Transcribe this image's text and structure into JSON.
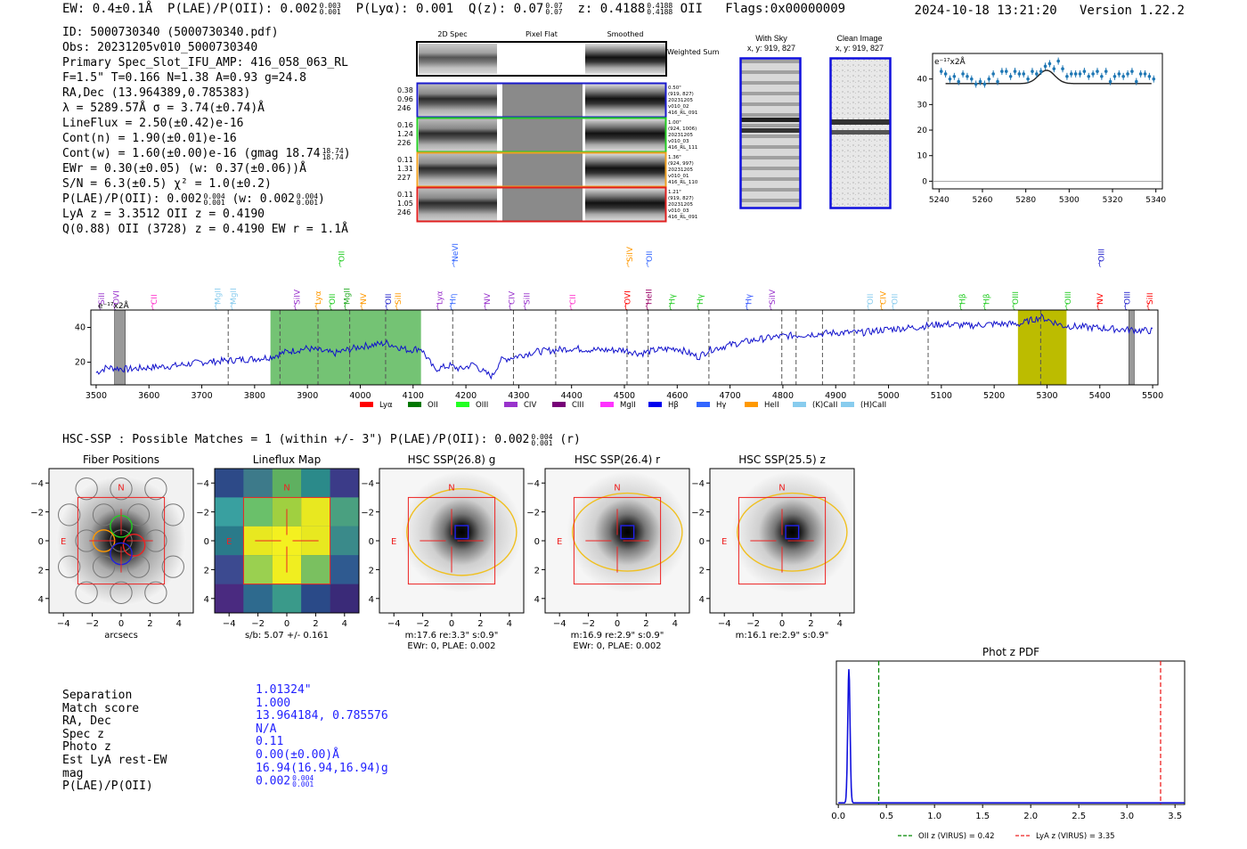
{
  "header": {
    "ew": "EW: 0.4±0.1Å",
    "plae_label": "P(LAE)/P(OII):",
    "plae_value": "0.002",
    "plae_hi": "0.003",
    "plae_lo": "0.001",
    "plya": "P(Lyα): 0.001",
    "qz_label": "Q(z): 0.07",
    "qz_hi": "0.07",
    "qz_lo": "0.07",
    "z_label": "z: 0.4188",
    "z_hi": "0.4188",
    "z_lo": "0.4188",
    "z_line": "OII",
    "flags": "Flags:0x00000009",
    "timestamp": "2024-10-18 13:21:20",
    "version": "Version 1.22.2"
  },
  "info": {
    "id": "ID: 5000730340 (5000730340.pdf)",
    "obs": "Obs: 20231205v010_5000730340",
    "primary": "Primary Spec_Slot_IFU_AMP: 416_058_063_RL",
    "fparams": "F=1.5\"  T=0.166  N=1.38  A=0.93  g=24.8",
    "radec": "RA,Dec (13.964389,0.785383)",
    "lambda": "λ = 5289.57Å  σ = 3.74(±0.74)Å",
    "lineflux": "LineFlux = 2.50(±0.42)e-16",
    "contn": "Cont(n) = 1.90(±0.01)e-16",
    "contw": "Cont(w) = 1.60(±0.00)e-16 (gmag 18.74",
    "contw_hi": "18.74",
    "contw_lo": "18.74",
    "contw_end": ")",
    "ewr": "EWr = 0.30(±0.05) (w: 0.37(±0.06))Å",
    "sn": "S/N = 6.3(±0.5)  χ² = 1.0(±0.2)",
    "plae": "P(LAE)/P(OII): 0.002",
    "plae_hi": "0.004",
    "plae_lo": "0.001",
    "plae_w": "(w: 0.002",
    "plae_w_hi": "0.004",
    "plae_w_lo": "0.001",
    "plae_w_end": ")",
    "lya": "LyA z = 3.3512   OII z = 0.4190",
    "q": "Q(0.88) OII (3728) z = 0.4190   EW r = 1.1Å"
  },
  "cutouts": {
    "col_2d": "2D Spec",
    "col_flat": "Pixel Flat",
    "col_smooth": "Smoothed",
    "weighted_sum": "Weighted Sum",
    "rows": [
      {
        "left": [
          "0.38",
          "0.96",
          "246"
        ],
        "right": [
          "0.50\"",
          "(919, 827)",
          "20231205",
          "v010_02",
          "416_RL_091"
        ],
        "color": "#1a1acc"
      },
      {
        "left": [
          "0.16",
          "1.24",
          "226"
        ],
        "right": [
          "1.00\"",
          "(924, 1006)",
          "20231205",
          "v010_03",
          "416_RL_111"
        ],
        "color": "#22cc22"
      },
      {
        "left": [
          "0.11",
          "1.31",
          "227"
        ],
        "right": [
          "1.36\"",
          "(924, 997)",
          "20231205",
          "v010_01",
          "416_RL_110"
        ],
        "color": "#f0a020"
      },
      {
        "left": [
          "0.11",
          "1.05",
          "246"
        ],
        "right": [
          "1.21\"",
          "(919, 827)",
          "20231205",
          "v010_03",
          "416_RL_091"
        ],
        "color": "#e02020"
      }
    ],
    "with_sky_title": "With Sky",
    "with_sky_xy": "x, y: 919, 827",
    "clean_title": "Clean Image",
    "clean_xy": "x, y: 919, 827"
  },
  "zoom_chart": {
    "type": "scatter",
    "ylabel": "e⁻¹⁷x2Å",
    "xlim": [
      5237,
      5343
    ],
    "ylim": [
      -3,
      50
    ],
    "xticks": [
      "5240",
      "5260",
      "5280",
      "5300",
      "5320",
      "5340"
    ],
    "yticks": [
      "0",
      "10",
      "20",
      "30",
      "40"
    ],
    "x": [
      5241,
      5243,
      5245,
      5247,
      5249,
      5251,
      5253,
      5255,
      5257,
      5259,
      5261,
      5263,
      5265,
      5267,
      5269,
      5271,
      5273,
      5275,
      5277,
      5279,
      5281,
      5283,
      5285,
      5287,
      5289,
      5291,
      5293,
      5295,
      5297,
      5299,
      5301,
      5303,
      5305,
      5307,
      5309,
      5311,
      5313,
      5315,
      5317,
      5319,
      5321,
      5323,
      5325,
      5327,
      5329,
      5331,
      5333,
      5335,
      5337,
      5339
    ],
    "y": [
      43,
      42,
      40,
      41,
      39,
      42,
      41,
      40,
      38,
      39,
      38,
      40,
      42,
      39,
      43,
      43,
      41,
      43,
      42,
      42,
      40,
      43,
      42,
      43,
      45,
      46,
      44,
      47,
      44,
      41,
      42,
      42,
      42,
      43,
      41,
      42,
      43,
      41,
      43,
      39,
      41,
      42,
      41,
      42,
      43,
      39,
      42,
      42,
      41,
      40
    ],
    "fit": {
      "center": 5289.6,
      "sigma": 3.74,
      "base": 38.2,
      "amp": 5.2,
      "x_start": 5243,
      "x_end": 5338
    }
  },
  "spectrum": {
    "type": "line",
    "ylabel": "e⁻¹⁷x2Å",
    "xlim": [
      3490,
      5510
    ],
    "ylim": [
      7,
      50
    ],
    "xticks": [
      "3500",
      "3600",
      "3700",
      "3800",
      "3900",
      "4000",
      "4100",
      "4200",
      "4300",
      "4400",
      "4500",
      "4600",
      "4700",
      "4800",
      "4900",
      "5000",
      "5100",
      "5200",
      "5300",
      "5400",
      "5500"
    ],
    "yticks": [
      "20",
      "40"
    ],
    "green_band": [
      3830,
      4115
    ],
    "yellow_band": [
      5245,
      5337
    ],
    "gray_bands": [
      [
        3535,
        3555
      ],
      [
        5455,
        5465
      ]
    ],
    "dashed": [
      3750,
      3848,
      3920,
      3980,
      4048,
      4175,
      4290,
      4370,
      4505,
      4545,
      4660,
      4798,
      4825,
      4875,
      4935,
      5075,
      5288
    ],
    "lines": [
      {
        "name": "SiII",
        "x": 3510,
        "color": "#9933cc",
        "row": 0
      },
      {
        "name": "OVI",
        "x": 3538,
        "color": "#9933cc",
        "row": 0
      },
      {
        "name": "CII",
        "x": 3610,
        "color": "#ff33cc",
        "row": 0
      },
      {
        "name": "MgII",
        "x": 3730,
        "color": "#88ccee",
        "row": 0
      },
      {
        "name": "MgII",
        "x": 3760,
        "color": "#88ccee",
        "row": 0
      },
      {
        "name": "SiIV",
        "x": 3880,
        "color": "#9933cc",
        "row": 0
      },
      {
        "name": "Lyα",
        "x": 3920,
        "color": "#ff9900",
        "row": 0
      },
      {
        "name": "OII",
        "x": 3947,
        "color": "#22cc22",
        "row": 0
      },
      {
        "name": "MgII",
        "x": 3975,
        "color": "#22aa22",
        "row": 0
      },
      {
        "name": "NV",
        "x": 4006,
        "color": "#ff9900",
        "row": 0
      },
      {
        "name": "OII",
        "x": 4053,
        "color": "#2222cc",
        "row": 0
      },
      {
        "name": "SiII",
        "x": 4072,
        "color": "#ff9900",
        "row": 0
      },
      {
        "name": "Lyα",
        "x": 4150,
        "color": "#9933cc",
        "row": 0
      },
      {
        "name": "Hη",
        "x": 4175,
        "color": "#3366ff",
        "row": 0
      },
      {
        "name": "NV",
        "x": 4240,
        "color": "#9933cc",
        "row": 0
      },
      {
        "name": "CIV",
        "x": 4287,
        "color": "#9933cc",
        "row": 0
      },
      {
        "name": "SiII",
        "x": 4315,
        "color": "#9933cc",
        "row": 0
      },
      {
        "name": "CII",
        "x": 4402,
        "color": "#ff33cc",
        "row": 0
      },
      {
        "name": "OVI",
        "x": 4506,
        "color": "#ff0000",
        "row": 0
      },
      {
        "name": "HeII",
        "x": 4546,
        "color": "#990066",
        "row": 0
      },
      {
        "name": "Hγ",
        "x": 4590,
        "color": "#22cc22",
        "row": 0
      },
      {
        "name": "Hγ",
        "x": 4643,
        "color": "#22cc22",
        "row": 0
      },
      {
        "name": "Hγ",
        "x": 4735,
        "color": "#3355ff",
        "row": 0
      },
      {
        "name": "SiIV",
        "x": 4780,
        "color": "#9933cc",
        "row": 0
      },
      {
        "name": "OII",
        "x": 4965,
        "color": "#88ccee",
        "row": 0
      },
      {
        "name": "CIV",
        "x": 4990,
        "color": "#ff9900",
        "row": 0
      },
      {
        "name": "OII",
        "x": 5012,
        "color": "#88ccee",
        "row": 0
      },
      {
        "name": "Hβ",
        "x": 5140,
        "color": "#22cc22",
        "row": 0
      },
      {
        "name": "Hβ",
        "x": 5185,
        "color": "#22cc22",
        "row": 0
      },
      {
        "name": "OIII",
        "x": 5240,
        "color": "#22cc22",
        "row": 0
      },
      {
        "name": "OIII",
        "x": 5340,
        "color": "#22cc22",
        "row": 0
      },
      {
        "name": "NV",
        "x": 5400,
        "color": "#ff0000",
        "row": 0
      },
      {
        "name": "OIII",
        "x": 5452,
        "color": "#2222cc",
        "row": 0
      },
      {
        "name": "SiII",
        "x": 5495,
        "color": "#ff0000",
        "row": 0
      },
      {
        "name": "OII",
        "x": 3965,
        "color": "#22cc22",
        "row": 1
      },
      {
        "name": "NeVI",
        "x": 4180,
        "color": "#3366ff",
        "row": 1
      },
      {
        "name": "SiIV",
        "x": 4510,
        "color": "#ff9900",
        "row": 1
      },
      {
        "name": "OII",
        "x": 4547,
        "color": "#3366ff",
        "row": 1
      },
      {
        "name": "OIII",
        "x": 5403,
        "color": "#2222cc",
        "row": 1
      }
    ],
    "legend": [
      {
        "label": "Lyα",
        "color": "#ff0000"
      },
      {
        "label": "OII",
        "color": "#007700"
      },
      {
        "label": "OIII",
        "color": "#22ff22"
      },
      {
        "label": "CIV",
        "color": "#9933cc"
      },
      {
        "label": "CIII",
        "color": "#770077"
      },
      {
        "label": "MgII",
        "color": "#ff33ff"
      },
      {
        "label": "Hβ",
        "color": "#0000ee"
      },
      {
        "label": "Hγ",
        "color": "#3366ff"
      },
      {
        "label": "HeII",
        "color": "#ff9900"
      },
      {
        "label": "(K)CaII",
        "color": "#88ccee"
      },
      {
        "label": "(H)CaII",
        "color": "#88ccee"
      }
    ],
    "anchors": [
      [
        3500,
        14
      ],
      [
        3520,
        17
      ],
      [
        3560,
        16
      ],
      [
        3600,
        17
      ],
      [
        3650,
        18
      ],
      [
        3700,
        20
      ],
      [
        3750,
        21
      ],
      [
        3800,
        22
      ],
      [
        3830,
        23
      ],
      [
        3860,
        26
      ],
      [
        3900,
        28
      ],
      [
        3950,
        25
      ],
      [
        4000,
        29
      ],
      [
        4050,
        31
      ],
      [
        4090,
        27
      ],
      [
        4115,
        28
      ],
      [
        4140,
        16
      ],
      [
        4170,
        18
      ],
      [
        4190,
        16
      ],
      [
        4215,
        19
      ],
      [
        4235,
        14
      ],
      [
        4250,
        12
      ],
      [
        4265,
        21
      ],
      [
        4290,
        23
      ],
      [
        4330,
        26
      ],
      [
        4370,
        27
      ],
      [
        4400,
        28
      ],
      [
        4450,
        27
      ],
      [
        4500,
        27
      ],
      [
        4530,
        25
      ],
      [
        4560,
        27
      ],
      [
        4600,
        28
      ],
      [
        4640,
        23
      ],
      [
        4660,
        27
      ],
      [
        4700,
        30
      ],
      [
        4750,
        33
      ],
      [
        4800,
        35
      ],
      [
        4850,
        36
      ],
      [
        4900,
        37
      ],
      [
        4950,
        37
      ],
      [
        5000,
        39
      ],
      [
        5050,
        40
      ],
      [
        5100,
        42
      ],
      [
        5150,
        41
      ],
      [
        5200,
        42
      ],
      [
        5250,
        42
      ],
      [
        5288,
        46
      ],
      [
        5330,
        41
      ],
      [
        5380,
        40
      ],
      [
        5430,
        39
      ],
      [
        5500,
        38
      ]
    ]
  },
  "hsc": {
    "summary": "HSC-SSP : Possible Matches = 1 (within +/- 3\")  P(LAE)/P(OII): 0.002",
    "summary_hi": "0.004",
    "summary_lo": "0.001",
    "summary_band": "(r)",
    "panels": [
      {
        "title": "Fiber Positions",
        "caption": [
          "arcsecs"
        ]
      },
      {
        "title": "Lineflux Map",
        "caption": [
          "s/b: 5.07 +/- 0.161"
        ]
      },
      {
        "title": "HSC SSP(26.8) g",
        "caption": [
          "m:17.6  re:3.3\"  s:0.9\"",
          "EWr: 0, PLAE: 0.002"
        ]
      },
      {
        "title": "HSC SSP(26.4) r",
        "caption": [
          "m:16.9  re:2.9\"  s:0.9\"",
          "EWr: 0, PLAE: 0.002"
        ]
      },
      {
        "title": "HSC SSP(25.5) z",
        "caption": [
          "m:16.1  re:2.9\"  s:0.9\""
        ]
      }
    ],
    "ticks": [
      "−4",
      "−2",
      "0",
      "2",
      "4"
    ],
    "north": "N",
    "east": "E"
  },
  "separation": {
    "labels": [
      "Separation",
      "Match score",
      "RA, Dec",
      "Spec z",
      "Photo z",
      "Est LyA rest-EW",
      "mag",
      "P(LAE)/P(OII)"
    ],
    "values": [
      "1.01324\"",
      "1.000",
      "13.964184, 0.785576",
      "N/A",
      "0.11",
      "0.00(±0.00)Å",
      "16.94(16.94,16.94)g",
      "0.002"
    ],
    "plae_hi": "0.004",
    "plae_lo": "0.001"
  },
  "photz": {
    "type": "line",
    "title": "Phot z PDF",
    "xlim": [
      -0.02,
      3.6
    ],
    "xticks": [
      "0.0",
      "0.5",
      "1.0",
      "1.5",
      "2.0",
      "2.5",
      "3.0",
      "3.5"
    ],
    "peak_z": 0.11,
    "oii_z": 0.42,
    "lya_z": 3.35,
    "legend_oii": "OII z (VIRUS) = 0.42",
    "legend_lya": "LyA z (VIRUS) = 3.35"
  }
}
